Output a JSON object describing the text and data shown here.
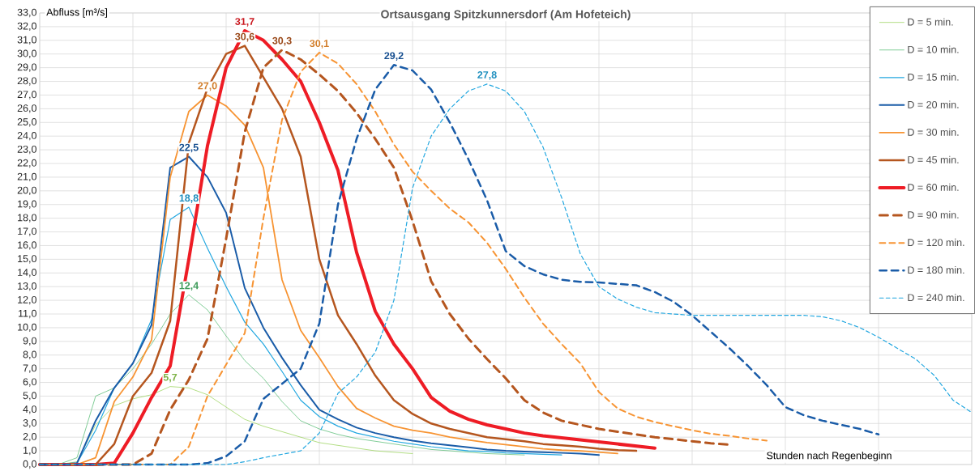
{
  "chart_data": {
    "type": "line",
    "title": "Ortsausgang Spitzkunnersdorf (Am Hofeteich)",
    "xlabel": "Stunden nach Regenbeginn",
    "ylabel": "Abfluss [m³/s]",
    "categories": [
      null,
      null,
      null,
      null,
      null,
      null,
      null,
      null,
      null,
      null,
      null,
      null,
      null,
      null,
      null,
      null,
      null,
      null,
      null,
      null,
      null,
      null,
      null,
      null,
      null,
      null,
      null,
      null,
      null,
      null,
      null,
      null,
      null,
      null,
      null,
      null,
      null,
      null,
      null,
      null,
      null,
      null,
      null,
      null,
      null,
      null,
      null,
      null,
      null,
      null,
      null
    ],
    "ylim": [
      0,
      33
    ],
    "yticks": [
      {
        "value": 0,
        "label": "0,0"
      },
      {
        "value": 1,
        "label": "1,0"
      },
      {
        "value": 2,
        "label": "2,0"
      },
      {
        "value": 3,
        "label": "3,0"
      },
      {
        "value": 4,
        "label": "4,0"
      },
      {
        "value": 5,
        "label": "5,0"
      },
      {
        "value": 6,
        "label": "6,0"
      },
      {
        "value": 7,
        "label": "7,0"
      },
      {
        "value": 8,
        "label": "8,0"
      },
      {
        "value": 9,
        "label": "9,0"
      },
      {
        "value": 10,
        "label": "10,0"
      },
      {
        "value": 11,
        "label": "11,0"
      },
      {
        "value": 12,
        "label": "12,0"
      },
      {
        "value": 13,
        "label": "13,0"
      },
      {
        "value": 14,
        "label": "14,0"
      },
      {
        "value": 15,
        "label": "15,0"
      },
      {
        "value": 16,
        "label": "16,0"
      },
      {
        "value": 17,
        "label": "17,0"
      },
      {
        "value": 18,
        "label": "18,0"
      },
      {
        "value": 19,
        "label": "19,0"
      },
      {
        "value": 20,
        "label": "20,0"
      },
      {
        "value": 21,
        "label": "21,0"
      },
      {
        "value": 22,
        "label": "22,0"
      },
      {
        "value": 23,
        "label": "23,0"
      },
      {
        "value": 24,
        "label": "24,0"
      },
      {
        "value": 25,
        "label": "25,0"
      },
      {
        "value": 26,
        "label": "26,0"
      },
      {
        "value": 27,
        "label": "27,0"
      },
      {
        "value": 28,
        "label": "28,0"
      },
      {
        "value": 29,
        "label": "29,0"
      },
      {
        "value": 30,
        "label": "30,0"
      },
      {
        "value": 31,
        "label": "31,0"
      },
      {
        "value": 32,
        "label": "32,0"
      },
      {
        "value": 33,
        "label": "33,0"
      }
    ],
    "grid": true,
    "legend": "top right",
    "marker": "none",
    "tick_labels": "y",
    "series": [
      {
        "name": "D = 5 min.",
        "color": "#92d050",
        "line_style": "solid",
        "values": [
          0,
          0,
          0.2,
          2.9,
          4.3,
          4.8,
          5.1,
          5.7,
          5.6,
          5.1,
          4.2,
          3.3,
          2.8,
          2.4,
          2.0,
          1.6,
          1.4,
          1.2,
          1.0,
          0.9,
          0.8,
          null,
          null,
          null,
          null,
          null,
          null,
          null,
          null,
          null,
          null,
          null,
          null,
          null,
          null,
          null,
          null,
          null,
          null,
          null,
          null,
          null,
          null,
          null,
          null,
          null,
          null,
          null,
          null,
          null,
          null
        ],
        "value_labels": [
          null,
          null,
          null,
          null,
          null,
          null,
          null,
          "5,7",
          null,
          null,
          null,
          null,
          null,
          null,
          null,
          null,
          null,
          null,
          null,
          null,
          null,
          null,
          null,
          null,
          null,
          null,
          null,
          null,
          null,
          null,
          null,
          null,
          null,
          null,
          null,
          null,
          null,
          null,
          null,
          null,
          null,
          null,
          null,
          null,
          null,
          null,
          null,
          null,
          null,
          null,
          null
        ]
      },
      {
        "name": "D = 10 min.",
        "color": "#4cb86c",
        "line_style": "solid",
        "values": [
          0,
          0,
          0.5,
          5.0,
          5.6,
          7.0,
          8.8,
          11.0,
          12.4,
          11.3,
          9.4,
          7.6,
          6.3,
          4.6,
          3.2,
          2.6,
          2.2,
          1.9,
          1.7,
          1.5,
          1.3,
          1.1,
          1.0,
          0.9,
          0.8,
          0.75,
          0.7,
          null,
          null,
          null,
          null,
          null,
          null,
          null,
          null,
          null,
          null,
          null,
          null,
          null,
          null,
          null,
          null,
          null,
          null,
          null,
          null,
          null,
          null,
          null,
          null
        ],
        "value_labels": [
          null,
          null,
          null,
          null,
          null,
          null,
          null,
          null,
          "12,4",
          null,
          null,
          null,
          null,
          null,
          null,
          null,
          null,
          null,
          null,
          null,
          null,
          null,
          null,
          null,
          null,
          null,
          null,
          null,
          null,
          null,
          null,
          null,
          null,
          null,
          null,
          null,
          null,
          null,
          null,
          null,
          null,
          null,
          null,
          null,
          null,
          null,
          null,
          null,
          null,
          null,
          null
        ]
      },
      {
        "name": "D = 15 min.",
        "color": "#22a7e0",
        "line_style": "solid",
        "values": [
          0,
          0,
          0.1,
          2.5,
          5.6,
          7.4,
          10.6,
          17.9,
          18.8,
          15.8,
          13.0,
          10.4,
          8.8,
          6.8,
          4.7,
          3.5,
          2.8,
          2.3,
          2.0,
          1.7,
          1.5,
          1.3,
          1.15,
          1.0,
          0.95,
          0.85,
          0.8,
          0.75,
          0.7,
          null,
          null,
          null,
          null,
          null,
          null,
          null,
          null,
          null,
          null,
          null,
          null,
          null,
          null,
          null,
          null,
          null,
          null,
          null,
          null,
          null,
          null
        ],
        "value_labels": [
          null,
          null,
          null,
          null,
          null,
          null,
          null,
          null,
          "18,8",
          null,
          null,
          null,
          null,
          null,
          null,
          null,
          null,
          null,
          null,
          null,
          null,
          null,
          null,
          null,
          null,
          null,
          null,
          null,
          null,
          null,
          null,
          null,
          null,
          null,
          null,
          null,
          null,
          null,
          null,
          null,
          null,
          null,
          null,
          null,
          null,
          null,
          null,
          null,
          null,
          null,
          null
        ]
      },
      {
        "name": "D = 20 min.",
        "color": "#1a5ca8",
        "line_style": "solid",
        "values": [
          0,
          0,
          0.1,
          3.2,
          5.6,
          7.4,
          10.2,
          21.7,
          22.5,
          21.0,
          18.4,
          12.9,
          10.0,
          7.8,
          5.8,
          4.0,
          3.3,
          2.7,
          2.3,
          2.0,
          1.75,
          1.55,
          1.4,
          1.25,
          1.1,
          1.0,
          0.95,
          0.9,
          0.85,
          0.8,
          0.7,
          null,
          null,
          null,
          null,
          null,
          null,
          null,
          null,
          null,
          null,
          null,
          null,
          null,
          null,
          null,
          null,
          null,
          null,
          null,
          null
        ],
        "value_labels": [
          null,
          null,
          null,
          null,
          null,
          null,
          null,
          null,
          "22,5",
          null,
          null,
          null,
          null,
          null,
          null,
          null,
          null,
          null,
          null,
          null,
          null,
          null,
          null,
          null,
          null,
          null,
          null,
          null,
          null,
          null,
          null,
          null,
          null,
          null,
          null,
          null,
          null,
          null,
          null,
          null,
          null,
          null,
          null,
          null,
          null,
          null,
          null,
          null,
          null,
          null,
          null
        ]
      },
      {
        "name": "D = 30 min.",
        "color": "#f79433",
        "line_style": "solid",
        "values": [
          0,
          0,
          0,
          0.5,
          4.6,
          6.4,
          9.1,
          21.0,
          25.8,
          27.0,
          26.2,
          24.8,
          21.7,
          13.5,
          9.8,
          7.8,
          5.7,
          4.1,
          3.4,
          2.8,
          2.5,
          2.3,
          2.0,
          1.8,
          1.6,
          1.45,
          1.3,
          1.15,
          1.05,
          1.0,
          0.9,
          0.8,
          null,
          null,
          null,
          null,
          null,
          null,
          null,
          null,
          null,
          null,
          null,
          null,
          null,
          null,
          null,
          null,
          null,
          null,
          null
        ],
        "value_labels": [
          null,
          null,
          null,
          null,
          null,
          null,
          null,
          null,
          null,
          "27,0",
          null,
          null,
          null,
          null,
          null,
          null,
          null,
          null,
          null,
          null,
          null,
          null,
          null,
          null,
          null,
          null,
          null,
          null,
          null,
          null,
          null,
          null,
          null,
          null,
          null,
          null,
          null,
          null,
          null,
          null,
          null,
          null,
          null,
          null,
          null,
          null,
          null,
          null,
          null,
          null,
          null
        ]
      },
      {
        "name": "D = 45 min.",
        "color": "#b5561f",
        "line_style": "solid",
        "values": [
          0,
          0,
          0,
          0,
          1.5,
          5.0,
          6.7,
          10.5,
          23.5,
          27.5,
          30.0,
          30.6,
          28.3,
          26.0,
          22.5,
          15.0,
          10.9,
          8.8,
          6.5,
          4.7,
          3.7,
          3.0,
          2.6,
          2.3,
          2.0,
          1.85,
          1.7,
          1.5,
          1.4,
          1.3,
          1.15,
          1.05,
          1.0,
          null,
          null,
          null,
          null,
          null,
          null,
          null,
          null,
          null,
          null,
          null,
          null,
          null,
          null,
          null,
          null,
          null,
          null
        ],
        "value_labels": [
          null,
          null,
          null,
          null,
          null,
          null,
          null,
          null,
          null,
          null,
          null,
          "30,6",
          null,
          null,
          null,
          null,
          null,
          null,
          null,
          null,
          null,
          null,
          null,
          null,
          null,
          null,
          null,
          null,
          null,
          null,
          null,
          null,
          null,
          null,
          null,
          null,
          null,
          null,
          null,
          null,
          null,
          null,
          null,
          null,
          null,
          null,
          null,
          null,
          null,
          null,
          null
        ]
      },
      {
        "name": "D = 60 min.",
        "color": "#ee1c25",
        "line_style": "solid",
        "values": [
          0,
          0,
          0,
          0,
          0.1,
          2.3,
          4.9,
          7.2,
          15.0,
          23.3,
          29.0,
          31.7,
          31.0,
          29.6,
          28.0,
          25.0,
          21.5,
          15.5,
          11.2,
          8.8,
          7.0,
          4.9,
          3.9,
          3.3,
          2.9,
          2.6,
          2.3,
          2.1,
          1.95,
          1.8,
          1.65,
          1.5,
          1.35,
          1.2,
          null,
          null,
          null,
          null,
          null,
          null,
          null,
          null,
          null,
          null,
          null,
          null,
          null,
          null,
          null,
          null,
          null
        ],
        "value_labels": [
          null,
          null,
          null,
          null,
          null,
          null,
          null,
          null,
          null,
          null,
          null,
          "31,7",
          null,
          null,
          null,
          null,
          null,
          null,
          null,
          null,
          null,
          null,
          null,
          null,
          null,
          null,
          null,
          null,
          null,
          null,
          null,
          null,
          null,
          null,
          null,
          null,
          null,
          null,
          null,
          null,
          null,
          null,
          null,
          null,
          null,
          null,
          null,
          null,
          null,
          null,
          null
        ]
      },
      {
        "name": "D = 90 min.",
        "color": "#b5561f",
        "line_style": "dashed",
        "values": [
          0,
          0,
          0,
          0,
          0,
          0,
          0.8,
          4.0,
          6.2,
          9.2,
          16.5,
          24.3,
          29.0,
          30.3,
          29.6,
          28.5,
          27.3,
          25.7,
          23.8,
          21.7,
          17.8,
          13.4,
          11.0,
          9.2,
          7.7,
          6.3,
          4.7,
          3.8,
          3.2,
          2.9,
          2.6,
          2.4,
          2.2,
          2.0,
          1.85,
          1.7,
          1.55,
          1.45,
          null,
          null,
          null,
          null,
          null,
          null,
          null,
          null,
          null,
          null,
          null,
          null,
          null
        ],
        "value_labels": [
          null,
          null,
          null,
          null,
          null,
          null,
          null,
          null,
          null,
          null,
          null,
          null,
          null,
          "30,3",
          null,
          null,
          null,
          null,
          null,
          null,
          null,
          null,
          null,
          null,
          null,
          null,
          null,
          null,
          null,
          null,
          null,
          null,
          null,
          null,
          null,
          null,
          null,
          null,
          null,
          null,
          null,
          null,
          null,
          null,
          null,
          null,
          null,
          null,
          null,
          null,
          null
        ]
      },
      {
        "name": "D = 120 min.",
        "color": "#f79433",
        "line_style": "dashed",
        "values": [
          0,
          0,
          0,
          0,
          0,
          0,
          0,
          0,
          1.3,
          5.0,
          7.3,
          9.6,
          18.0,
          25.2,
          28.7,
          30.1,
          29.3,
          27.8,
          25.8,
          23.4,
          21.4,
          20.0,
          18.7,
          17.7,
          16.2,
          14.3,
          12.2,
          10.3,
          8.8,
          7.4,
          5.3,
          4.1,
          3.5,
          3.1,
          2.8,
          2.5,
          2.25,
          2.1,
          1.9,
          1.75,
          null,
          null,
          null,
          null,
          null,
          null,
          null,
          null,
          null,
          null,
          null
        ],
        "value_labels": [
          null,
          null,
          null,
          null,
          null,
          null,
          null,
          null,
          null,
          null,
          null,
          null,
          null,
          null,
          null,
          "30,1",
          null,
          null,
          null,
          null,
          null,
          null,
          null,
          null,
          null,
          null,
          null,
          null,
          null,
          null,
          null,
          null,
          null,
          null,
          null,
          null,
          null,
          null,
          null,
          null,
          null,
          null,
          null,
          null,
          null,
          null,
          null,
          null,
          null,
          null,
          null
        ]
      },
      {
        "name": "D = 180 min.",
        "color": "#1a5ca8",
        "line_style": "dashed",
        "values": [
          0,
          0,
          0,
          0,
          0,
          0,
          0,
          0,
          0,
          0.1,
          0.6,
          1.7,
          4.8,
          5.9,
          7.0,
          10.3,
          19.0,
          23.8,
          27.4,
          29.2,
          28.8,
          27.4,
          25.0,
          22.3,
          19.3,
          15.6,
          14.5,
          13.9,
          13.5,
          13.35,
          13.3,
          13.2,
          13.1,
          12.6,
          11.9,
          10.9,
          9.7,
          8.5,
          7.2,
          5.8,
          4.2,
          3.6,
          3.2,
          2.9,
          2.6,
          2.2,
          null,
          null,
          null,
          null,
          null
        ],
        "value_labels": [
          null,
          null,
          null,
          null,
          null,
          null,
          null,
          null,
          null,
          null,
          null,
          null,
          null,
          null,
          null,
          null,
          null,
          null,
          null,
          "29,2",
          null,
          null,
          null,
          null,
          null,
          null,
          null,
          null,
          null,
          null,
          null,
          null,
          null,
          null,
          null,
          null,
          null,
          null,
          null,
          null,
          null,
          null,
          null,
          null,
          null,
          null,
          null,
          null,
          null,
          null,
          null
        ]
      },
      {
        "name": "D = 240 min.",
        "color": "#22a7e0",
        "line_style": "dashed",
        "values": [
          0,
          0,
          0,
          0,
          0,
          0,
          0,
          0,
          0,
          0,
          0,
          0.2,
          0.5,
          0.75,
          1.0,
          2.3,
          5.2,
          6.4,
          8.2,
          12.0,
          20.2,
          24.0,
          26.0,
          27.3,
          27.8,
          27.3,
          25.8,
          23.2,
          19.5,
          15.4,
          13.0,
          12.1,
          11.5,
          11.1,
          11.0,
          10.9,
          10.9,
          10.9,
          10.9,
          10.9,
          10.9,
          10.9,
          10.8,
          10.5,
          10.0,
          9.3,
          8.5,
          7.7,
          6.5,
          4.7,
          3.8
        ],
        "value_labels": [
          null,
          null,
          null,
          null,
          null,
          null,
          null,
          null,
          null,
          null,
          null,
          null,
          null,
          null,
          null,
          null,
          null,
          null,
          null,
          null,
          null,
          null,
          null,
          null,
          "27,8",
          null,
          null,
          null,
          null,
          null,
          null,
          null,
          null,
          null,
          null,
          null,
          null,
          null,
          null,
          null,
          null,
          null,
          null,
          null,
          null,
          null,
          null,
          null,
          null,
          null,
          null
        ]
      }
    ]
  }
}
